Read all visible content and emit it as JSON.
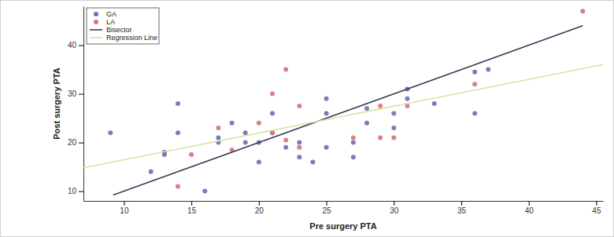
{
  "chart_data": {
    "type": "scatter",
    "x_label": "Pre surgery PTA",
    "y_label": "Post surgery PTA",
    "xlim": [
      7,
      45.5
    ],
    "ylim": [
      8,
      48
    ],
    "xticks": [
      10,
      15,
      20,
      25,
      30,
      35,
      40,
      45
    ],
    "yticks": [
      10,
      20,
      30,
      40
    ],
    "legend": "top-left",
    "grid": false,
    "series": [
      {
        "name": "GA",
        "type": "scatter",
        "marker": "circle",
        "color": "#6b6fb3",
        "x": [
          9,
          12,
          13,
          13,
          14,
          14,
          16,
          17,
          17,
          18,
          19,
          19,
          20,
          20,
          21,
          21,
          22,
          23,
          23,
          24,
          25,
          25,
          25,
          27,
          27,
          28,
          28,
          30,
          30,
          31,
          31,
          33,
          36,
          36,
          37
        ],
        "values": [
          22,
          14,
          17.5,
          18,
          28,
          22,
          10,
          21,
          20,
          24,
          22,
          20,
          20,
          16,
          26,
          22,
          19,
          20,
          17,
          16,
          29,
          26,
          19,
          20,
          17,
          27,
          24,
          26,
          23,
          31,
          29,
          28,
          34.5,
          26,
          35
        ]
      },
      {
        "name": "LA",
        "type": "scatter",
        "marker": "circle",
        "color": "#d9707f",
        "x": [
          14,
          15,
          17,
          18,
          20,
          21,
          21,
          22,
          22,
          23,
          23,
          27,
          29,
          29,
          30,
          31,
          36,
          44
        ],
        "values": [
          11,
          17.5,
          23,
          18.5,
          24,
          30,
          22,
          35,
          20.5,
          27.5,
          19,
          21,
          27.5,
          21,
          21,
          27.5,
          32,
          47
        ]
      },
      {
        "name": "Bisector",
        "type": "line",
        "line_style": "solid",
        "color": "#3a3a58",
        "x": [
          9.2,
          44
        ],
        "values": [
          9.2,
          44
        ]
      },
      {
        "name": "Regression Line",
        "type": "line",
        "line_style": "solid",
        "color": "#d6e4a2",
        "x": [
          7,
          45.5
        ],
        "values": [
          14.8,
          36
        ]
      }
    ]
  }
}
